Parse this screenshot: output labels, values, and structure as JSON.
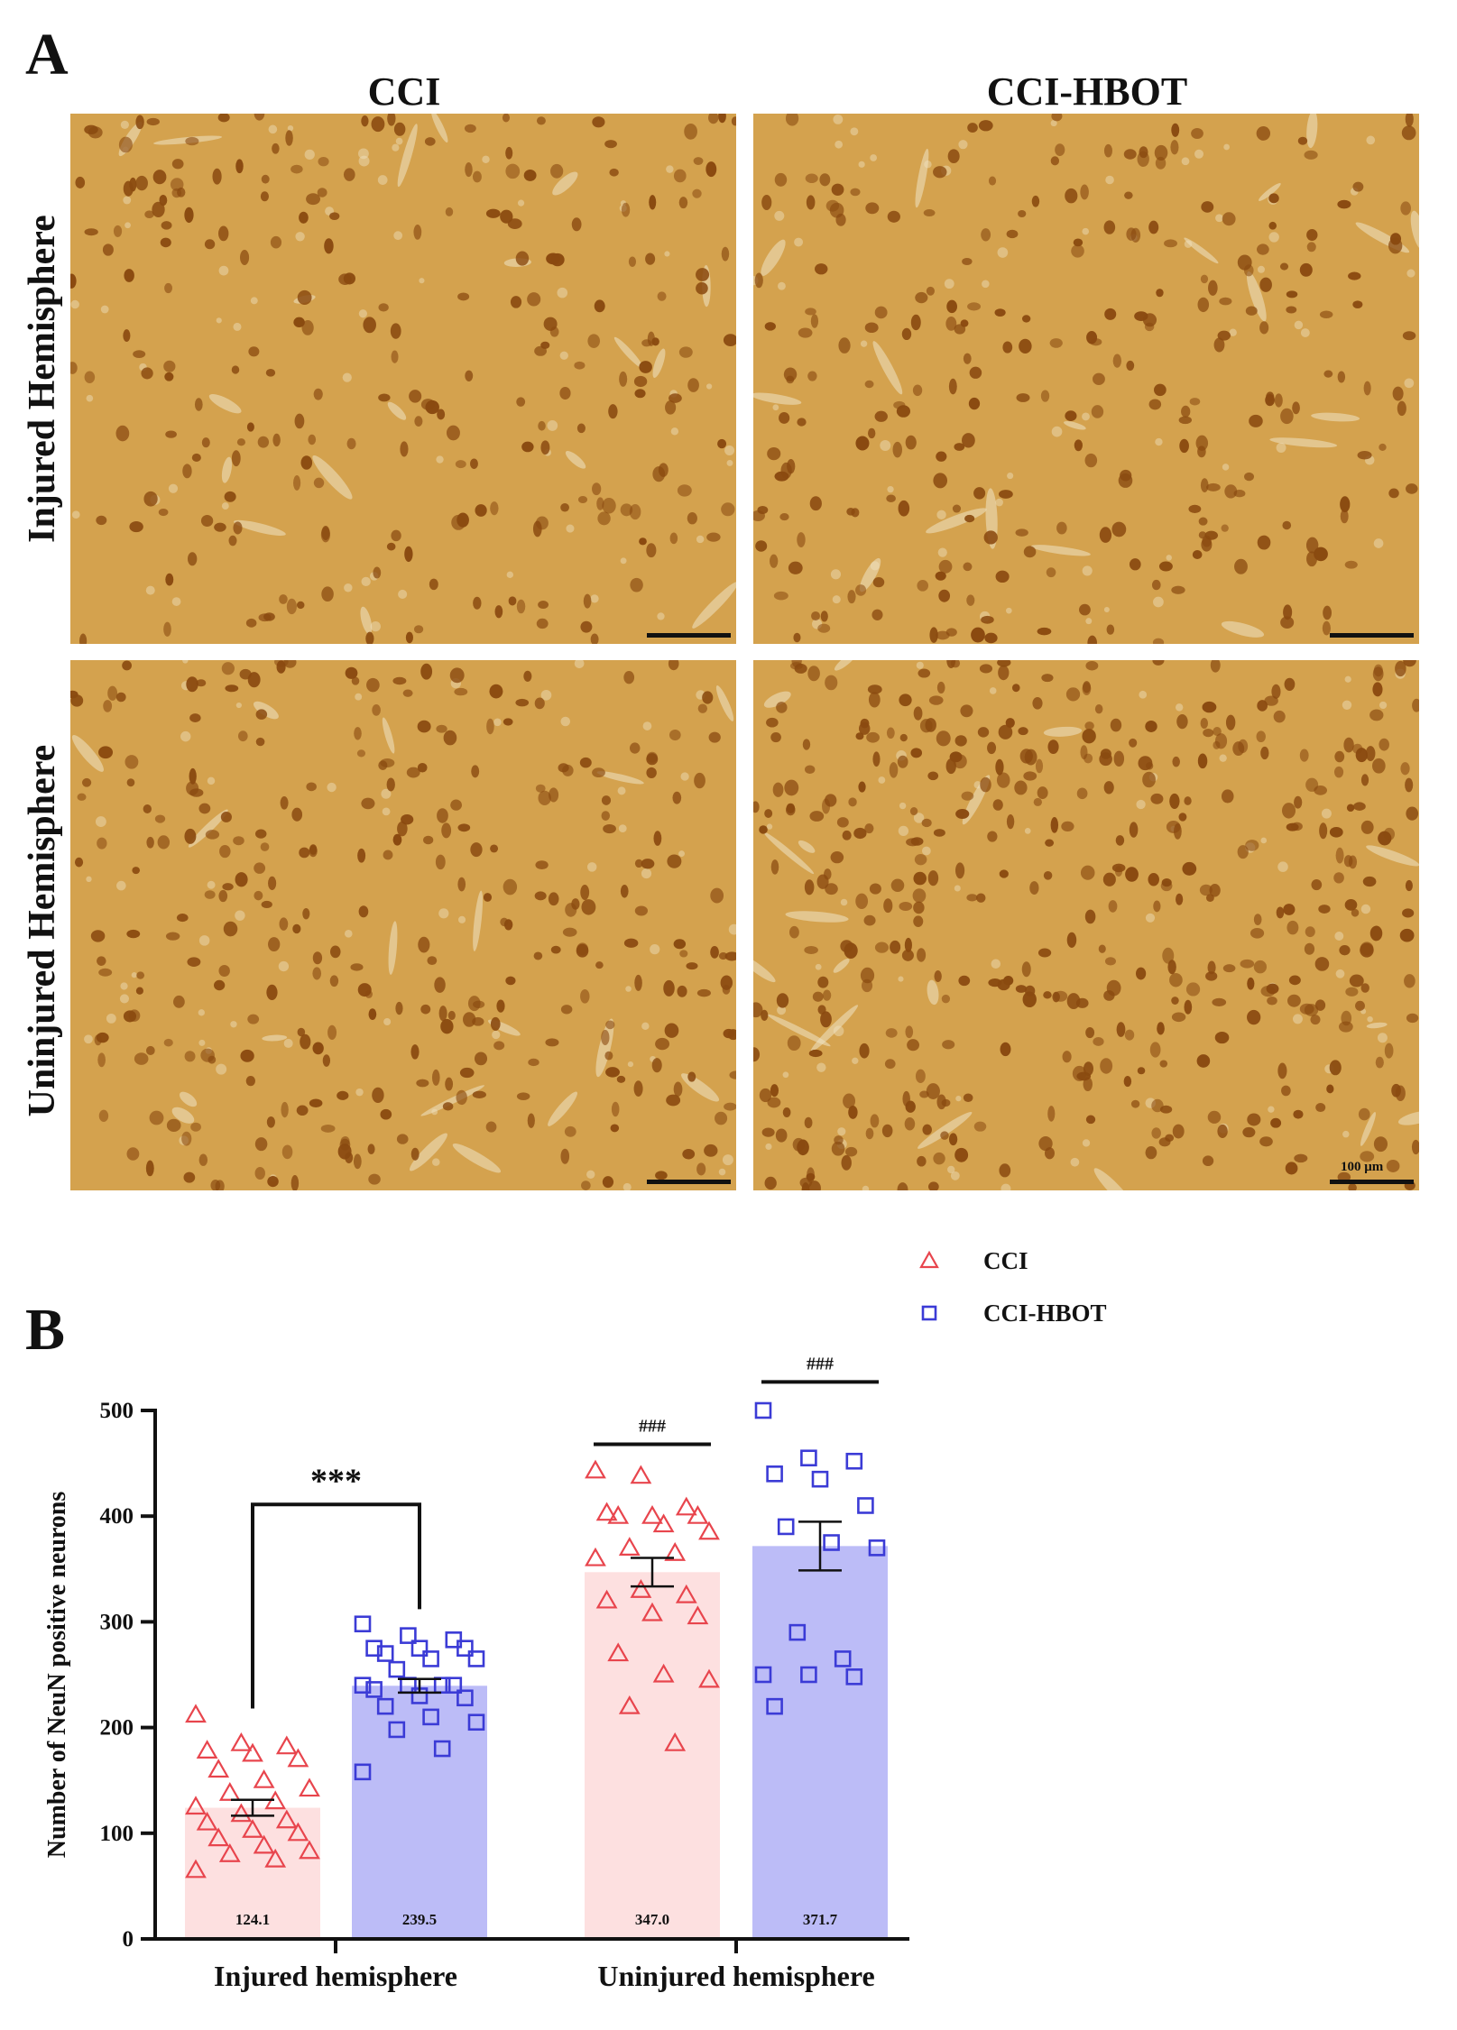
{
  "panel_a": {
    "letter": "A",
    "columns": [
      "CCI",
      "CCI-HBOT"
    ],
    "rows": [
      "Injured Hemisphere",
      "Uninjured Hemisphere"
    ],
    "scale_label": "100 μm",
    "stain_colors": {
      "background": "#d4a24e",
      "cell": "#8a4a10",
      "vessel": "#efe3c4"
    },
    "cell_density": [
      [
        0.55,
        0.6
      ],
      [
        0.7,
        1.0
      ]
    ]
  },
  "panel_b": {
    "letter": "B"
  },
  "chart_data": {
    "type": "bar",
    "ylabel": "Number of NeuN positive neurons",
    "ylim": [
      0,
      500
    ],
    "yticks": [
      0,
      100,
      200,
      300,
      400,
      500
    ],
    "categories": [
      "Injured hemisphere",
      "Uninjured hemisphere"
    ],
    "legend": {
      "placement": "top-right"
    },
    "series": [
      {
        "name": "CCI",
        "marker": "triangle",
        "color": "#e8454d",
        "bar_color": "#fde0e0",
        "means": [
          124.1,
          347.0
        ],
        "mean_labels": [
          "124.1",
          "347.0"
        ],
        "sem": [
          7.5,
          13.5
        ],
        "points": [
          [
            212,
            185,
            182,
            178,
            175,
            170,
            160,
            150,
            142,
            138,
            130,
            125,
            118,
            112,
            110,
            103,
            100,
            95,
            88,
            83,
            80,
            75,
            65
          ],
          [
            443,
            438,
            408,
            403,
            400,
            400,
            400,
            392,
            385,
            370,
            365,
            360,
            330,
            325,
            320,
            308,
            305,
            270,
            250,
            245,
            220,
            185
          ]
        ]
      },
      {
        "name": "CCI-HBOT",
        "marker": "square",
        "color": "#3b3bd6",
        "bar_color": "#bcbcf7",
        "means": [
          239.5,
          371.7
        ],
        "mean_labels": [
          "239.5",
          "371.7"
        ],
        "sem": [
          6.5,
          23.0
        ],
        "points": [
          [
            298,
            287,
            283,
            275,
            275,
            275,
            270,
            265,
            265,
            255,
            240,
            240,
            240,
            240,
            236,
            230,
            228,
            220,
            210,
            205,
            198,
            180,
            158
          ],
          [
            500,
            455,
            452,
            440,
            435,
            410,
            390,
            375,
            370,
            290,
            265,
            250,
            250,
            248,
            220
          ]
        ]
      }
    ],
    "annotations": [
      {
        "text": "***",
        "type": "bracket",
        "from": "CCI:Injured hemisphere",
        "to": "CCI-HBOT:Injured hemisphere"
      },
      {
        "text": "###",
        "type": "line",
        "over": "CCI:Uninjured hemisphere"
      },
      {
        "text": "###",
        "type": "line",
        "over": "CCI-HBOT:Uninjured hemisphere"
      }
    ]
  }
}
